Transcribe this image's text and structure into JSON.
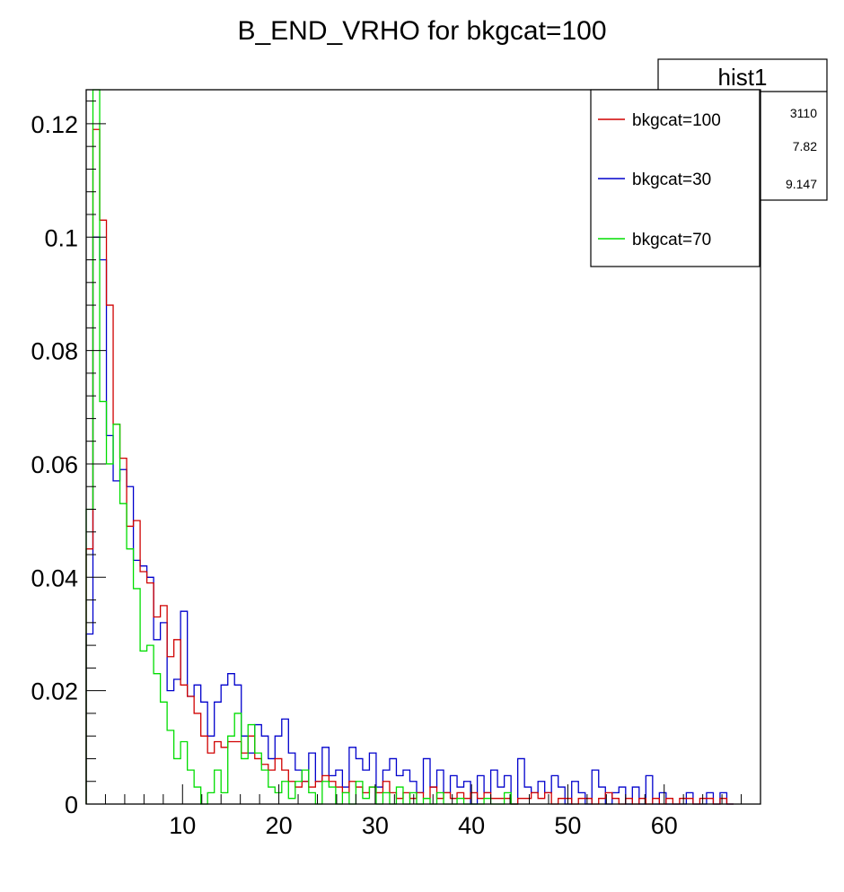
{
  "chart_data": {
    "type": "histogram-step",
    "title": "B_END_VRHO for bkgcat=100",
    "xlabel": "",
    "ylabel": "",
    "xlim": [
      0,
      70
    ],
    "ylim": [
      0,
      0.126
    ],
    "bin_width": 0.7,
    "x_ticks": [
      10,
      20,
      30,
      40,
      50,
      60
    ],
    "y_ticks": [
      0,
      0.02,
      0.04,
      0.06,
      0.08,
      0.1,
      0.12
    ],
    "y_tick_labels": [
      "0",
      "0.02",
      "0.04",
      "0.06",
      "0.08",
      "0.1",
      "0.12"
    ],
    "grid": false,
    "legend_position": "top-right",
    "series": [
      {
        "name": "bkgcat=100",
        "color": "#d00000",
        "points": [
          [
            0.0,
            0.045
          ],
          [
            0.7,
            0.119
          ],
          [
            1.4,
            0.103
          ],
          [
            2.1,
            0.088
          ],
          [
            2.8,
            0.067
          ],
          [
            3.5,
            0.061
          ],
          [
            4.2,
            0.049
          ],
          [
            4.9,
            0.05
          ],
          [
            5.6,
            0.041
          ],
          [
            6.3,
            0.039
          ],
          [
            7.0,
            0.033
          ],
          [
            7.7,
            0.035
          ],
          [
            8.4,
            0.026
          ],
          [
            9.1,
            0.029
          ],
          [
            9.8,
            0.021
          ],
          [
            10.5,
            0.019
          ],
          [
            11.2,
            0.016
          ],
          [
            11.9,
            0.012
          ],
          [
            12.6,
            0.009
          ],
          [
            13.3,
            0.011
          ],
          [
            14.0,
            0.01
          ],
          [
            14.7,
            0.011
          ],
          [
            15.4,
            0.011
          ],
          [
            16.1,
            0.009
          ],
          [
            16.8,
            0.012
          ],
          [
            17.5,
            0.008
          ],
          [
            18.2,
            0.007
          ],
          [
            18.9,
            0.006
          ],
          [
            19.6,
            0.008
          ],
          [
            20.3,
            0.006
          ],
          [
            21.0,
            0.004
          ],
          [
            21.7,
            0.003
          ],
          [
            22.4,
            0.004
          ],
          [
            23.1,
            0.003
          ],
          [
            23.8,
            0.004
          ],
          [
            24.5,
            0.005
          ],
          [
            25.2,
            0.004
          ],
          [
            25.9,
            0.003
          ],
          [
            26.6,
            0.002
          ],
          [
            27.3,
            0.004
          ],
          [
            28.0,
            0.003
          ],
          [
            28.7,
            0.002
          ],
          [
            29.4,
            0.003
          ],
          [
            30.1,
            0.002
          ],
          [
            30.8,
            0.004
          ],
          [
            31.5,
            0.002
          ],
          [
            32.2,
            0.001
          ],
          [
            32.9,
            0.002
          ],
          [
            33.6,
            0.001
          ],
          [
            34.3,
            0.002
          ],
          [
            35.0,
            0.001
          ],
          [
            35.7,
            0.003
          ],
          [
            36.4,
            0.001
          ],
          [
            37.1,
            0.002
          ],
          [
            37.8,
            0.001
          ],
          [
            38.5,
            0.002
          ],
          [
            39.2,
            0.001
          ],
          [
            39.9,
            0.002
          ],
          [
            40.6,
            0.001
          ],
          [
            41.3,
            0.002
          ],
          [
            42.0,
            0.001
          ],
          [
            42.7,
            0.001
          ],
          [
            43.4,
            0.001
          ],
          [
            44.1,
            0.0
          ],
          [
            44.8,
            0.001
          ],
          [
            45.5,
            0.001
          ],
          [
            46.2,
            0.002
          ],
          [
            46.9,
            0.001
          ],
          [
            47.6,
            0.002
          ],
          [
            48.3,
            0.0
          ],
          [
            49.0,
            0.001
          ],
          [
            49.7,
            0.001
          ],
          [
            50.4,
            0.0
          ],
          [
            51.1,
            0.001
          ],
          [
            51.8,
            0.001
          ],
          [
            52.5,
            0.0
          ],
          [
            53.2,
            0.001
          ],
          [
            53.9,
            0.002
          ],
          [
            54.6,
            0.001
          ],
          [
            55.3,
            0.0
          ],
          [
            56.0,
            0.001
          ],
          [
            56.7,
            0.0
          ],
          [
            57.4,
            0.001
          ],
          [
            58.1,
            0.0
          ],
          [
            58.8,
            0.001
          ],
          [
            59.5,
            0.0
          ],
          [
            60.2,
            0.001
          ],
          [
            60.9,
            0.0
          ],
          [
            61.6,
            0.001
          ],
          [
            62.3,
            0.001
          ],
          [
            63.0,
            0.0
          ],
          [
            63.7,
            0.001
          ],
          [
            64.4,
            0.001
          ],
          [
            65.1,
            0.0
          ],
          [
            65.8,
            0.001
          ],
          [
            66.5,
            0.0
          ]
        ]
      },
      {
        "name": "bkgcat=30",
        "color": "#0000cc",
        "points": [
          [
            0.0,
            0.03
          ],
          [
            0.7,
            0.1
          ],
          [
            1.4,
            0.096
          ],
          [
            2.1,
            0.065
          ],
          [
            2.8,
            0.057
          ],
          [
            3.5,
            0.059
          ],
          [
            4.2,
            0.056
          ],
          [
            4.9,
            0.043
          ],
          [
            5.6,
            0.042
          ],
          [
            6.3,
            0.04
          ],
          [
            7.0,
            0.029
          ],
          [
            7.7,
            0.032
          ],
          [
            8.4,
            0.02
          ],
          [
            9.1,
            0.022
          ],
          [
            9.8,
            0.034
          ],
          [
            10.5,
            0.019
          ],
          [
            11.2,
            0.021
          ],
          [
            11.9,
            0.018
          ],
          [
            12.6,
            0.012
          ],
          [
            13.3,
            0.018
          ],
          [
            14.0,
            0.021
          ],
          [
            14.7,
            0.023
          ],
          [
            15.4,
            0.021
          ],
          [
            16.1,
            0.012
          ],
          [
            16.8,
            0.009
          ],
          [
            17.5,
            0.014
          ],
          [
            18.2,
            0.012
          ],
          [
            18.9,
            0.008
          ],
          [
            19.6,
            0.012
          ],
          [
            20.3,
            0.015
          ],
          [
            21.0,
            0.009
          ],
          [
            21.7,
            0.006
          ],
          [
            22.4,
            0.004
          ],
          [
            23.1,
            0.009
          ],
          [
            23.8,
            0.004
          ],
          [
            24.5,
            0.01
          ],
          [
            25.2,
            0.005
          ],
          [
            25.9,
            0.006
          ],
          [
            26.6,
            0.003
          ],
          [
            27.3,
            0.01
          ],
          [
            28.0,
            0.008
          ],
          [
            28.7,
            0.006
          ],
          [
            29.4,
            0.009
          ],
          [
            30.1,
            0.003
          ],
          [
            30.8,
            0.006
          ],
          [
            31.5,
            0.008
          ],
          [
            32.2,
            0.005
          ],
          [
            32.9,
            0.006
          ],
          [
            33.6,
            0.004
          ],
          [
            34.3,
            0.002
          ],
          [
            35.0,
            0.008
          ],
          [
            35.7,
            0.003
          ],
          [
            36.4,
            0.006
          ],
          [
            37.1,
            0.002
          ],
          [
            37.8,
            0.005
          ],
          [
            38.5,
            0.003
          ],
          [
            39.2,
            0.004
          ],
          [
            39.9,
            0.0
          ],
          [
            40.6,
            0.005
          ],
          [
            41.3,
            0.002
          ],
          [
            42.0,
            0.006
          ],
          [
            42.7,
            0.003
          ],
          [
            43.4,
            0.005
          ],
          [
            44.1,
            0.0
          ],
          [
            44.8,
            0.008
          ],
          [
            45.5,
            0.003
          ],
          [
            46.2,
            0.002
          ],
          [
            46.9,
            0.004
          ],
          [
            47.6,
            0.002
          ],
          [
            48.3,
            0.005
          ],
          [
            49.0,
            0.003
          ],
          [
            49.7,
            0.0
          ],
          [
            50.4,
            0.004
          ],
          [
            51.1,
            0.002
          ],
          [
            51.8,
            0.0
          ],
          [
            52.5,
            0.006
          ],
          [
            53.2,
            0.003
          ],
          [
            53.9,
            0.0
          ],
          [
            54.6,
            0.002
          ],
          [
            55.3,
            0.003
          ],
          [
            56.0,
            0.0
          ],
          [
            56.7,
            0.003
          ],
          [
            57.4,
            0.0
          ],
          [
            58.1,
            0.005
          ],
          [
            58.8,
            0.0
          ],
          [
            59.5,
            0.002
          ],
          [
            60.2,
            0.0
          ],
          [
            60.9,
            0.0
          ],
          [
            61.6,
            0.0
          ],
          [
            62.3,
            0.002
          ],
          [
            63.0,
            0.0
          ],
          [
            63.7,
            0.0
          ],
          [
            64.4,
            0.002
          ],
          [
            65.1,
            0.0
          ],
          [
            65.8,
            0.002
          ],
          [
            66.5,
            0.0
          ]
        ]
      },
      {
        "name": "bkgcat=70",
        "color": "#00dd00",
        "points": [
          [
            0.0,
            0.052
          ],
          [
            0.7,
            0.126
          ],
          [
            1.4,
            0.071
          ],
          [
            2.1,
            0.06
          ],
          [
            2.8,
            0.067
          ],
          [
            3.5,
            0.053
          ],
          [
            4.2,
            0.045
          ],
          [
            4.9,
            0.038
          ],
          [
            5.6,
            0.027
          ],
          [
            6.3,
            0.028
          ],
          [
            7.0,
            0.023
          ],
          [
            7.7,
            0.018
          ],
          [
            8.4,
            0.013
          ],
          [
            9.1,
            0.008
          ],
          [
            9.8,
            0.011
          ],
          [
            10.5,
            0.006
          ],
          [
            11.2,
            0.003
          ],
          [
            11.9,
            0.0
          ],
          [
            12.6,
            0.002
          ],
          [
            13.3,
            0.006
          ],
          [
            14.0,
            0.002
          ],
          [
            14.7,
            0.012
          ],
          [
            15.4,
            0.016
          ],
          [
            16.1,
            0.008
          ],
          [
            16.8,
            0.014
          ],
          [
            17.5,
            0.009
          ],
          [
            18.2,
            0.006
          ],
          [
            18.9,
            0.003
          ],
          [
            19.6,
            0.002
          ],
          [
            20.3,
            0.004
          ],
          [
            21.0,
            0.001
          ],
          [
            21.7,
            0.004
          ],
          [
            22.4,
            0.006
          ],
          [
            23.1,
            0.002
          ],
          [
            23.8,
            0.0
          ],
          [
            24.5,
            0.004
          ],
          [
            25.2,
            0.003
          ],
          [
            25.9,
            0.0
          ],
          [
            26.6,
            0.002
          ],
          [
            27.3,
            0.0
          ],
          [
            28.0,
            0.004
          ],
          [
            28.7,
            0.001
          ],
          [
            29.4,
            0.003
          ],
          [
            30.1,
            0.0
          ],
          [
            30.8,
            0.002
          ],
          [
            31.5,
            0.0
          ],
          [
            32.2,
            0.003
          ],
          [
            32.9,
            0.0
          ],
          [
            33.6,
            0.002
          ],
          [
            34.3,
            0.0
          ],
          [
            35.0,
            0.001
          ],
          [
            35.7,
            0.0
          ],
          [
            36.4,
            0.002
          ],
          [
            37.1,
            0.0
          ],
          [
            37.8,
            0.0
          ],
          [
            38.5,
            0.001
          ],
          [
            39.2,
            0.0
          ],
          [
            39.9,
            0.0
          ],
          [
            40.6,
            0.0
          ],
          [
            41.3,
            0.001
          ],
          [
            42.0,
            0.0
          ],
          [
            42.7,
            0.0
          ],
          [
            43.4,
            0.002
          ],
          [
            44.1,
            0.0
          ]
        ]
      }
    ]
  },
  "stats_box": {
    "title": "hist1",
    "values": [
      "3110",
      "7.82",
      "9.147"
    ]
  }
}
